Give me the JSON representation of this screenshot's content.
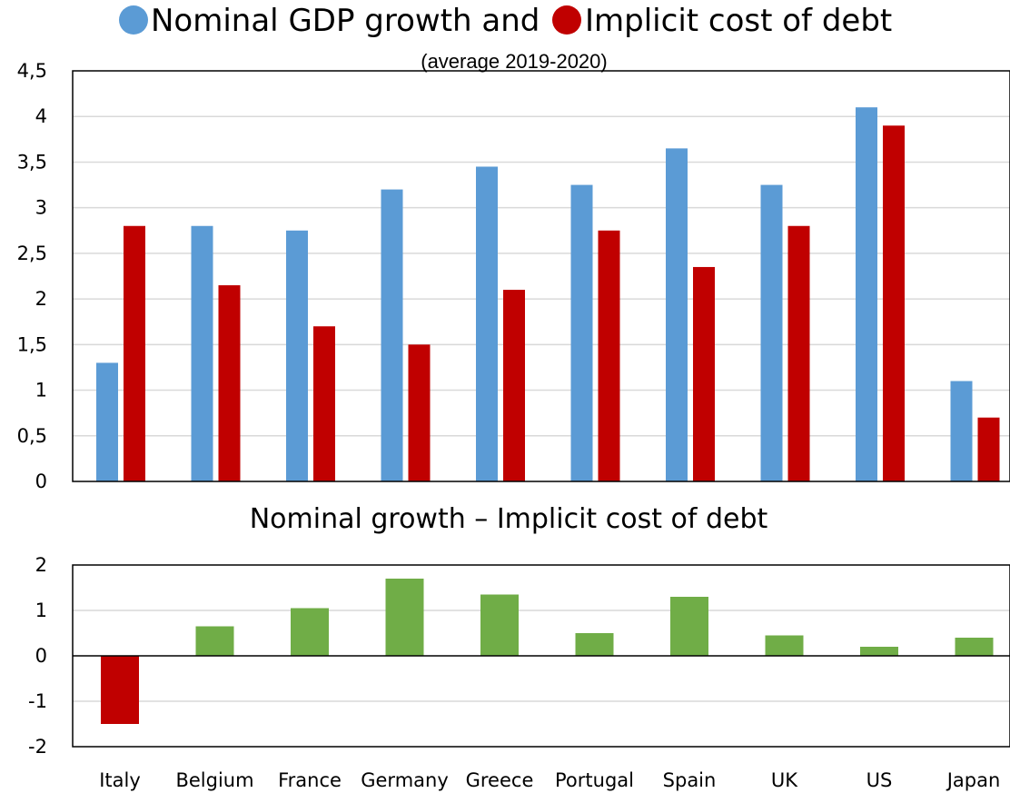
{
  "chart_data": [
    {
      "type": "bar",
      "title_parts": [
        "Nominal GDP growth  and ",
        "Implicit cost of debt"
      ],
      "subtitle": "(average 2019-2020)",
      "categories": [
        "Italy",
        "Belgium",
        "France",
        "Germany",
        "Greece",
        "Portugal",
        "Spain",
        "UK",
        "US",
        "Japan"
      ],
      "series": [
        {
          "name": "Nominal GDP growth",
          "color": "#5B9BD5",
          "values": [
            1.3,
            2.8,
            2.75,
            3.2,
            3.45,
            3.25,
            3.65,
            3.25,
            4.1,
            1.1
          ]
        },
        {
          "name": "Implicit cost of debt",
          "color": "#C00000",
          "values": [
            2.8,
            2.15,
            1.7,
            1.5,
            2.1,
            2.75,
            2.35,
            2.8,
            3.9,
            0.7
          ]
        }
      ],
      "ylim": [
        0,
        4.5
      ],
      "yticks": [
        "0",
        "0,5",
        "1",
        "1,5",
        "2",
        "2,5",
        "3",
        "3,5",
        "4",
        "4,5"
      ],
      "grid": true
    },
    {
      "type": "bar",
      "title": "Nominal growth – Implicit cost of debt",
      "categories": [
        "Italy",
        "Belgium",
        "France",
        "Germany",
        "Greece",
        "Portugal",
        "Spain",
        "UK",
        "US",
        "Japan"
      ],
      "values": [
        -1.5,
        0.65,
        1.05,
        1.7,
        1.35,
        0.5,
        1.3,
        0.45,
        0.2,
        0.4
      ],
      "positive_color": "#70AD47",
      "negative_color": "#C00000",
      "ylim": [
        -2,
        2
      ],
      "yticks": [
        "-2",
        "-1",
        "0",
        "1",
        "2"
      ],
      "grid": true
    }
  ]
}
